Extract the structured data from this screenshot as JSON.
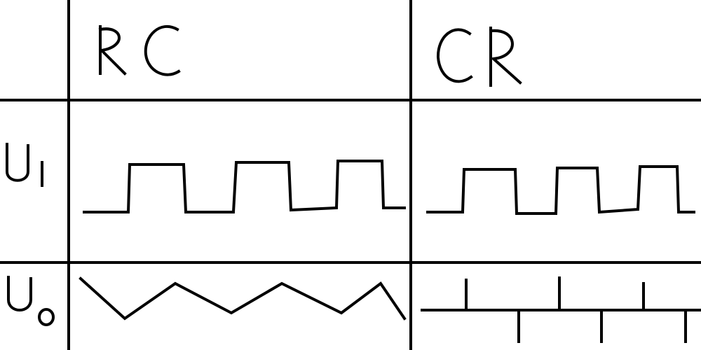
{
  "table": {
    "columns": [
      "RC",
      "CR"
    ],
    "rows": [
      {
        "label": "U1",
        "label_main": "U",
        "label_sub": "1"
      },
      {
        "label": "U0",
        "label_main": "U",
        "label_sub": "0"
      }
    ]
  },
  "waveforms": {
    "rc_input": "square",
    "rc_output": "triangle",
    "cr_input": "square",
    "cr_output": "spikes"
  },
  "colors": {
    "ink": "#000000",
    "paper": "#ffffff"
  }
}
